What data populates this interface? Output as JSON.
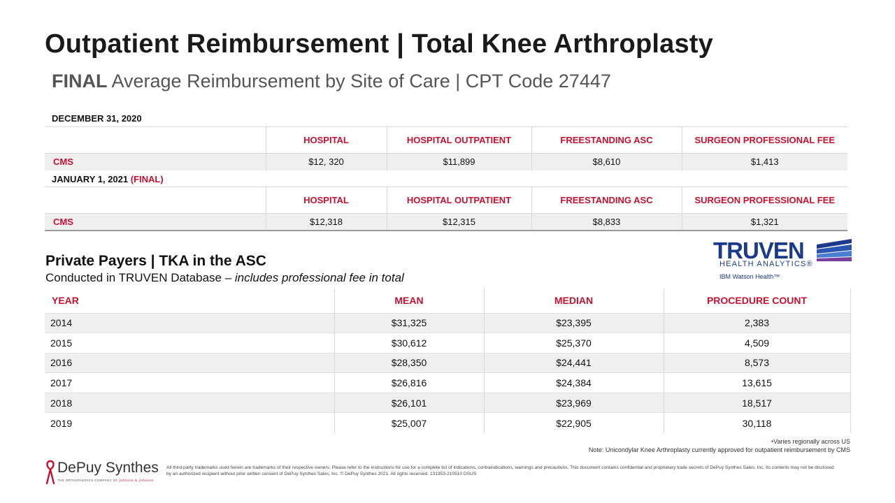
{
  "title": "Outpatient Reimbursement | Total Knee Arthroplasty",
  "subtitle": {
    "bold": "FINAL",
    "rest": " Average Reimbursement by Site of Care | CPT Code 27447"
  },
  "cms_2020": {
    "label": "DECEMBER 31, 2020",
    "headers": [
      "",
      "HOSPITAL",
      "HOSPITAL OUTPATIENT",
      "FREESTANDING ASC",
      "SURGEON PROFESSIONAL FEE"
    ],
    "row": [
      "CMS",
      "$12, 320",
      "$11,899",
      "$8,610",
      "$1,413"
    ]
  },
  "cms_2021": {
    "label": "JANUARY 1, 2021",
    "label_suffix": "(FINAL)",
    "headers": [
      "",
      "HOSPITAL",
      "HOSPITAL OUTPATIENT",
      "FREESTANDING ASC",
      "SURGEON PROFESSIONAL FEE"
    ],
    "row": [
      "CMS",
      "$12,318",
      "$12,315",
      "$8,833",
      "$1,321"
    ]
  },
  "private_payers": {
    "title": "Private Payers | TKA in the ASC",
    "subtitle_plain": "Conducted in TRUVEN Database – ",
    "subtitle_italic": "includes professional fee in total",
    "headers": [
      "YEAR",
      "MEAN",
      "MEDIAN",
      "PROCEDURE COUNT"
    ],
    "rows": [
      [
        "2014",
        "$31,325",
        "$23,395",
        "2,383"
      ],
      [
        "2015",
        "$30,612",
        "$25,370",
        "4,509"
      ],
      [
        "2016",
        "$28,350",
        "$24,441",
        "8,573"
      ],
      [
        "2017",
        "$26,816",
        "$24,384",
        "13,615"
      ],
      [
        "2018",
        "$26,101",
        "$23,969",
        "18,517"
      ],
      [
        "2019",
        "$25,007",
        "$22,905",
        "30,118"
      ]
    ]
  },
  "truven_logo": {
    "word": "TRUVEN",
    "tagline": "HEALTH ANALYTICS",
    "reg": "®",
    "sub": "IBM Watson Health™",
    "color": "#1b3a8c"
  },
  "notes": {
    "varies": "Varies regionally across US",
    "uka": "Note: Unicondylar Knee Arthroplasty currently approved for outpatient reimbursement by CMS"
  },
  "depuy_logo": {
    "word": "DePuy Synthes",
    "tagline": "THE ORTHOPAEDICS COMPANY OF ",
    "jj": "Johnson & Johnson"
  },
  "legal": "All third-party trademarks used herein are trademarks of their respective owners. Please refer to the instructions for use for a complete list of indications, contraindications, warnings and precautions. This document contains confidential and proprietary trade secrets of DePuy Synthes Sales, Inc. Its contents may not be disclosed by an authorized recipient without prior written consent of DePuy Synthes Sales, Inc. © DePuy Synthes  2021. All rights reserved. 131353-210510 DSUS",
  "colors": {
    "accent_red": "#c8102e",
    "brand_blue": "#1b3a8c",
    "row_gray": "#efefef"
  }
}
